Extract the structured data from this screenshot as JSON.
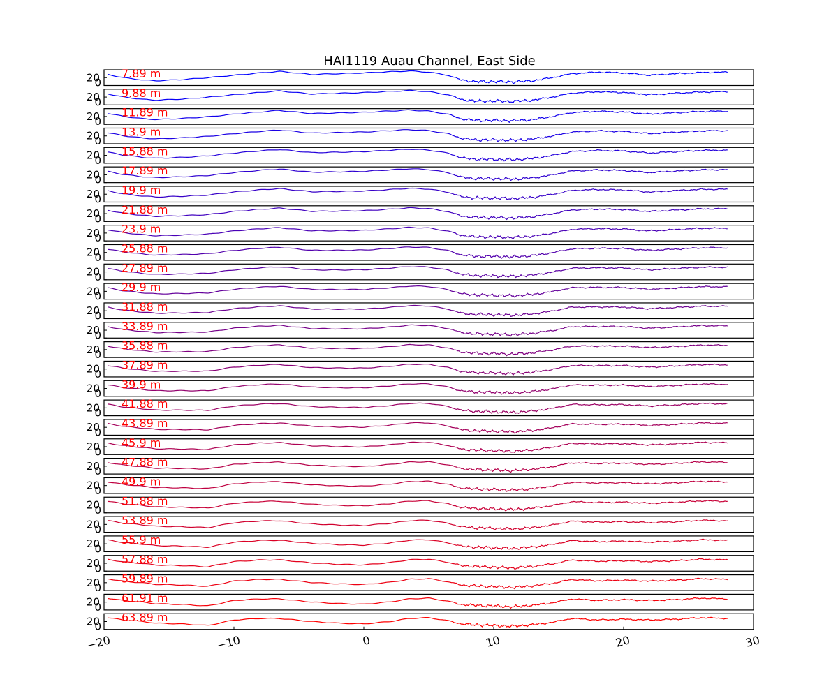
{
  "chart_data": {
    "type": "line",
    "title": "HAI1119   Auau Channel, East Side",
    "xlabel": "",
    "ylabel": "",
    "xlim": [
      -20,
      30
    ],
    "x_ticks": [
      "−20",
      "−10",
      "0",
      "10",
      "20",
      "30"
    ],
    "x_tick_values": [
      -20,
      -10,
      0,
      10,
      20,
      30
    ],
    "panel_ylim": [
      0,
      40
    ],
    "panel_y_ticks": [
      "20",
      "0"
    ],
    "panel_y_tick_values": [
      20,
      0
    ],
    "grid": false,
    "legend": "none",
    "label_color": "#ff0000",
    "color_start": "#0000ff",
    "color_end": "#ff0000",
    "panels": [
      {
        "label": "7.89 m"
      },
      {
        "label": "9.88 m"
      },
      {
        "label": "11.89 m"
      },
      {
        "label": "13.9 m"
      },
      {
        "label": "15.88 m"
      },
      {
        "label": "17.89 m"
      },
      {
        "label": "19.9 m"
      },
      {
        "label": "21.88 m"
      },
      {
        "label": "23.9 m"
      },
      {
        "label": "25.88 m"
      },
      {
        "label": "27.89 m"
      },
      {
        "label": "29.9 m"
      },
      {
        "label": "31.88 m"
      },
      {
        "label": "33.89 m"
      },
      {
        "label": "35.88 m"
      },
      {
        "label": "37.89 m"
      },
      {
        "label": "39.9 m"
      },
      {
        "label": "41.88 m"
      },
      {
        "label": "43.89 m"
      },
      {
        "label": "45.9 m"
      },
      {
        "label": "47.88 m"
      },
      {
        "label": "49.9 m"
      },
      {
        "label": "51.88 m"
      },
      {
        "label": "53.89 m"
      },
      {
        "label": "55.9 m"
      },
      {
        "label": "57.88 m"
      },
      {
        "label": "59.89 m"
      },
      {
        "label": "61.91 m"
      },
      {
        "label": "63.89 m"
      }
    ],
    "profile_x": [
      -19.7,
      -18.5,
      -17,
      -16,
      -14,
      -12,
      -10,
      -8,
      -6.5,
      -4,
      -2,
      0,
      2,
      3.5,
      5,
      6.5,
      7.5,
      8.5,
      10,
      11.5,
      13,
      14.5,
      16,
      18,
      20,
      22,
      24,
      26,
      28
    ],
    "profile_top": [
      28,
      20,
      14,
      12,
      15,
      20,
      26,
      32,
      36,
      28,
      30,
      32,
      35,
      37,
      34,
      26,
      14,
      10,
      10,
      9,
      12,
      20,
      30,
      34,
      32,
      26,
      30,
      33,
      34
    ],
    "profile_bottom": [
      30,
      24,
      20,
      16,
      14,
      10,
      24,
      28,
      28,
      20,
      16,
      14,
      20,
      28,
      30,
      22,
      14,
      12,
      10,
      8,
      12,
      18,
      28,
      24,
      26,
      24,
      26,
      30,
      28
    ],
    "wiggle_amplitude": [
      0,
      0,
      0,
      0,
      0,
      0,
      0,
      0,
      0,
      0,
      0,
      0,
      0,
      0,
      0,
      0,
      4,
      8,
      8,
      8,
      6,
      3,
      2,
      3,
      3,
      3,
      3,
      3,
      2
    ]
  }
}
